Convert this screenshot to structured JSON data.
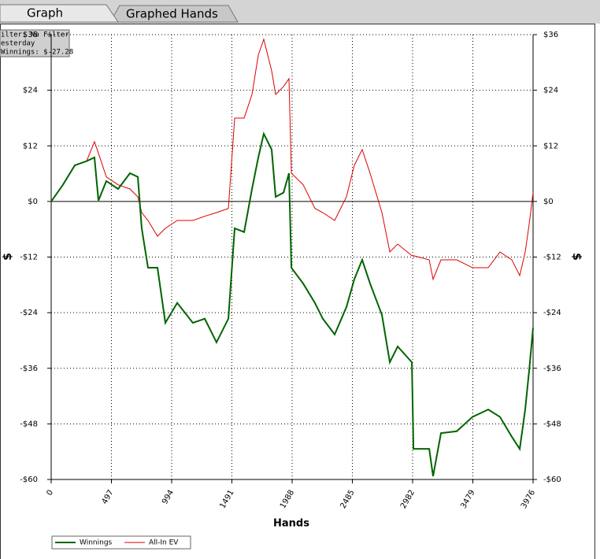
{
  "tabs": [
    "Graph",
    "Graphed Hands"
  ],
  "filter_box": [
    "ilter: No Filter",
    "esterday",
    "Winnings: $-27.28"
  ],
  "chart_data": {
    "type": "line",
    "x_label": "Hands",
    "y_label": "$",
    "y2_label": "$",
    "x": [
      0,
      97,
      195,
      292,
      357,
      390,
      455,
      552,
      650,
      715,
      747,
      799,
      877,
      942,
      1040,
      1169,
      1267,
      1364,
      1462,
      1514,
      1592,
      1657,
      1709,
      1754,
      1819,
      1852,
      1917,
      1962,
      1982,
      2079,
      2176,
      2241,
      2339,
      2436,
      2501,
      2566,
      2631,
      2729,
      2794,
      2859,
      2976,
      2989,
      3119,
      3151,
      3216,
      3346,
      3476,
      3606,
      3703,
      3801,
      3866,
      3911,
      3944,
      3976
    ],
    "series": [
      {
        "name": "Winnings",
        "color": "#006400",
        "width": 2,
        "values": [
          0,
          3.6,
          7.8,
          8.7,
          9.5,
          0.2,
          4.4,
          2.7,
          6.1,
          5.3,
          -5.8,
          -14.3,
          -14.3,
          -26.2,
          -21.9,
          -26.2,
          -25.3,
          -30.4,
          -25.3,
          -5.8,
          -6.6,
          2.7,
          9.5,
          14.6,
          11.2,
          1.0,
          1.9,
          6.1,
          -14.3,
          -17.7,
          -21.9,
          -25.3,
          -28.7,
          -22.8,
          -16.8,
          -12.6,
          -17.7,
          -24.5,
          -34.7,
          -31.3,
          -34.7,
          -53.4,
          -53.4,
          -59.3,
          -50.0,
          -49.6,
          -46.5,
          -44.9,
          -46.5,
          -50.8,
          -53.4,
          -44.9,
          -36.4,
          -27.28
        ]
      },
      {
        "name": "All-In EV",
        "color": "#dd0000",
        "width": 1,
        "values": [
          0,
          3.6,
          7.8,
          8.7,
          12.9,
          10.4,
          5.3,
          3.6,
          2.7,
          1.0,
          -2.4,
          -4.1,
          -7.5,
          -5.8,
          -4.1,
          -4.1,
          -3.2,
          -2.4,
          -1.5,
          18.0,
          18.0,
          23.1,
          31.6,
          35.0,
          28.2,
          23.1,
          24.8,
          26.5,
          6.1,
          3.6,
          -1.5,
          -2.4,
          -4.1,
          1.0,
          7.8,
          11.2,
          6.1,
          -2.4,
          -10.9,
          -9.2,
          -11.7,
          -11.7,
          -12.6,
          -16.8,
          -12.6,
          -12.6,
          -14.3,
          -14.3,
          -10.9,
          -12.6,
          -16.0,
          -10.9,
          -4.9,
          1.9
        ]
      }
    ],
    "xlim": [
      0,
      3976
    ],
    "xticks": [
      0,
      497,
      994,
      1491,
      1988,
      2485,
      2982,
      3479,
      3976
    ],
    "ylim": [
      -60,
      36
    ],
    "yticks": [
      {
        "value": -60,
        "label": "-$60"
      },
      {
        "value": -48,
        "label": "-$48"
      },
      {
        "value": -36,
        "label": "-$36"
      },
      {
        "value": -24,
        "label": "-$24"
      },
      {
        "value": -12,
        "label": "-$12"
      },
      {
        "value": 0,
        "label": "$0"
      },
      {
        "value": 12,
        "label": "$12"
      },
      {
        "value": 24,
        "label": "$24"
      },
      {
        "value": 36,
        "label": "$36"
      }
    ],
    "grid": true
  }
}
